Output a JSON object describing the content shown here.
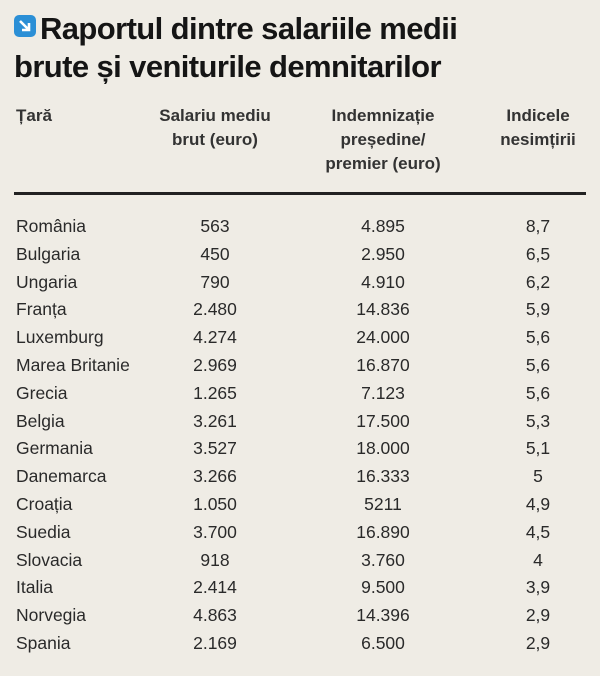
{
  "title": {
    "line1": "Raportul dintre salariile medii",
    "line2": "brute și veniturile demnitarilor",
    "icon": "arrow-down-right-icon",
    "icon_color": "#2b8fd6"
  },
  "columns": [
    {
      "line1": "Țară"
    },
    {
      "line1": "Salariu mediu",
      "line2": "brut (euro)"
    },
    {
      "line1": "Indemnizație",
      "line2": "președine/",
      "line3": "premier (euro)"
    },
    {
      "line1": "Indicele",
      "line2": "nesimțirii"
    }
  ],
  "rows": [
    [
      "România",
      "563",
      "4.895",
      "8,7"
    ],
    [
      "Bulgaria",
      "450",
      "2.950",
      "6,5"
    ],
    [
      "Ungaria",
      "790",
      "4.910",
      "6,2"
    ],
    [
      "Franța",
      "2.480",
      "14.836",
      "5,9"
    ],
    [
      "Luxemburg",
      "4.274",
      "24.000",
      "5,6"
    ],
    [
      "Marea Britanie",
      "2.969",
      "16.870",
      "5,6"
    ],
    [
      "Grecia",
      "1.265",
      "7.123",
      "5,6"
    ],
    [
      "Belgia",
      "3.261",
      "17.500",
      "5,3"
    ],
    [
      "Germania",
      "3.527",
      "18.000",
      "5,1"
    ],
    [
      "Danemarca",
      "3.266",
      "16.333",
      "5"
    ],
    [
      "Croația",
      "1.050",
      "5211",
      "4,9"
    ],
    [
      "Suedia",
      "3.700",
      "16.890",
      "4,5"
    ],
    [
      "Slovacia",
      "918",
      "3.760",
      "4"
    ],
    [
      "Italia",
      "2.414",
      "9.500",
      "3,9"
    ],
    [
      "Norvegia",
      "4.863",
      "14.396",
      "2,9"
    ],
    [
      "Spania",
      "2.169",
      "6.500",
      "2,9"
    ]
  ]
}
